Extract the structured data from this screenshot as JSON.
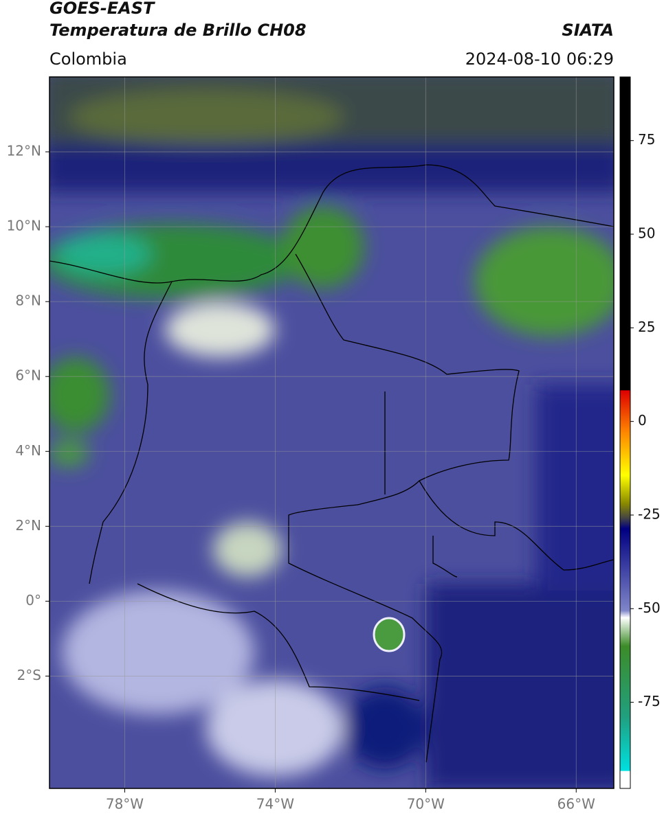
{
  "chart_data": {
    "type": "map",
    "title": "GOES-EAST",
    "subtitle": "Temperatura de Brillo CH08",
    "region": "Colombia",
    "source": "SIATA",
    "timestamp": "2024-08-10 06:29",
    "xlim": [
      -80,
      -65
    ],
    "ylim": [
      -5,
      14
    ],
    "xticks": [
      {
        "value": -78,
        "label": "78°W"
      },
      {
        "value": -74,
        "label": "74°W"
      },
      {
        "value": -70,
        "label": "70°W"
      },
      {
        "value": -66,
        "label": "66°W"
      }
    ],
    "yticks": [
      {
        "value": 12,
        "label": "12°N"
      },
      {
        "value": 10,
        "label": "10°N"
      },
      {
        "value": 8,
        "label": "8°N"
      },
      {
        "value": 6,
        "label": "6°N"
      },
      {
        "value": 4,
        "label": "4°N"
      },
      {
        "value": 2,
        "label": "2°N"
      },
      {
        "value": 0,
        "label": "0°"
      },
      {
        "value": -2,
        "label": "2°S"
      }
    ],
    "grid": true,
    "colorbar": {
      "lim": [
        -98,
        92
      ],
      "ticks": [
        75,
        50,
        25,
        0,
        -25,
        -50,
        -75
      ]
    }
  }
}
